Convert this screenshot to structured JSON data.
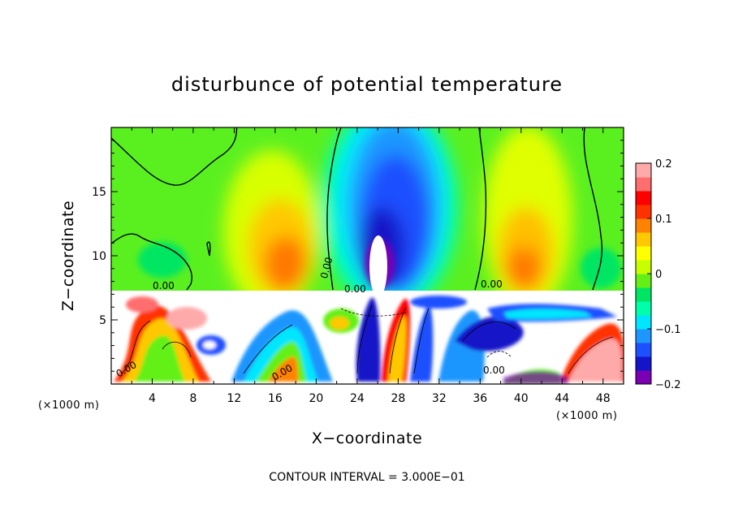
{
  "chart_data": {
    "type": "heatmap",
    "title": "disturbunce of potential temperature",
    "xlabel": "X−coordinate",
    "ylabel": "Z−coordinate",
    "x_unit_left": "(×1000 m)",
    "x_unit_right": "(×1000 m)",
    "xlim": [
      0,
      50
    ],
    "ylim": [
      0,
      20
    ],
    "xticks": [
      4,
      8,
      12,
      16,
      20,
      24,
      28,
      32,
      36,
      40,
      44,
      48
    ],
    "yticks": [
      5,
      10,
      15
    ],
    "colorbar": {
      "range": [
        -0.2,
        0.2
      ],
      "tick_values": [
        0.2,
        0.1,
        0,
        -0.1,
        -0.2
      ],
      "tick_labels": [
        "0.2",
        "0.1",
        "0",
        "−0.1",
        "−0.2"
      ],
      "colors": [
        "#7a00b4",
        "#1414c8",
        "#1e50ff",
        "#1e96ff",
        "#00e6ff",
        "#00ffaa",
        "#00e664",
        "#64f014",
        "#c8ff00",
        "#ffff00",
        "#ffc800",
        "#ff8200",
        "#ff3200",
        "#ff0000",
        "#ff6e6e",
        "#ffaaaa"
      ]
    },
    "contour_labels": [
      "0.00",
      "0.00",
      "0.00",
      "0.00",
      "0.00",
      "0.00",
      "0.00"
    ],
    "footer": "CONTOUR INTERVAL = 3.000E−01"
  }
}
